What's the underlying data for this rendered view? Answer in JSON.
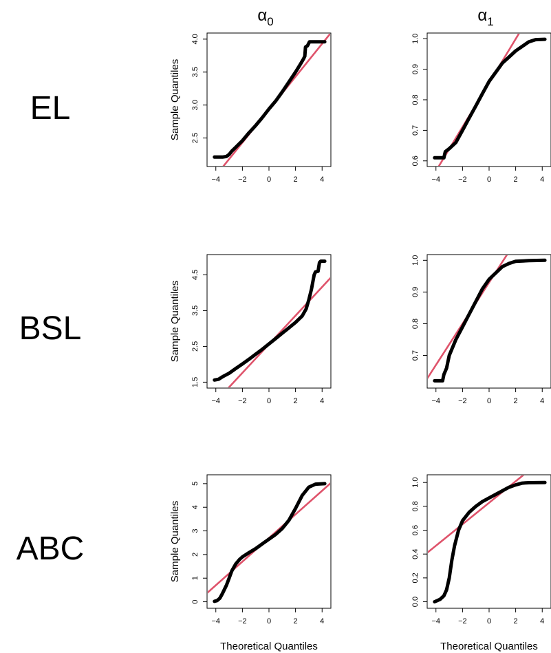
{
  "figure": {
    "columns": [
      {
        "symbol": "α",
        "subscript": "0"
      },
      {
        "symbol": "α",
        "subscript": "1"
      }
    ],
    "rows": [
      "EL",
      "BSL",
      "ABC"
    ]
  },
  "colors": {
    "points": "#000000",
    "line": "#DF536B",
    "axis": "#000000"
  },
  "chart_data": [
    {
      "type": "scatter",
      "row": "EL",
      "column": "α0",
      "ylabel": "Sample Quantiles",
      "xlabel": "",
      "xlim": [
        -4.35,
        4.35
      ],
      "ylim": [
        2.13,
        4.03
      ],
      "xticks": [
        -4,
        -2,
        0,
        2,
        4
      ],
      "xtick_labels": [
        "−4",
        "−2",
        "0",
        "2",
        "4"
      ],
      "yticks": [
        2.5,
        3.0,
        3.5,
        4.0
      ],
      "ytick_labels": [
        "2.5",
        "3.0",
        "3.5",
        "4.0"
      ],
      "qq_curve": [
        [
          -4.1,
          2.21
        ],
        [
          -3.5,
          2.21
        ],
        [
          -3.2,
          2.22
        ],
        [
          -3.0,
          2.25
        ],
        [
          -2.8,
          2.3
        ],
        [
          -2.5,
          2.36
        ],
        [
          -2.0,
          2.46
        ],
        [
          -1.5,
          2.58
        ],
        [
          -1.0,
          2.69
        ],
        [
          -0.5,
          2.81
        ],
        [
          0,
          2.94
        ],
        [
          0.5,
          3.06
        ],
        [
          1.0,
          3.2
        ],
        [
          1.5,
          3.35
        ],
        [
          2.0,
          3.5
        ],
        [
          2.4,
          3.63
        ],
        [
          2.6,
          3.7
        ],
        [
          2.7,
          3.74
        ],
        [
          2.75,
          3.88
        ],
        [
          2.9,
          3.9
        ],
        [
          3.05,
          3.96
        ],
        [
          4.2,
          3.96
        ]
      ],
      "reference_line": {
        "intercept": 2.93,
        "slope": 0.25
      }
    },
    {
      "type": "scatter",
      "row": "EL",
      "column": "α1",
      "ylabel": "",
      "xlabel": "",
      "xlim": [
        -4.35,
        4.35
      ],
      "ylim": [
        0.595,
        1.005
      ],
      "xticks": [
        -4,
        -2,
        0,
        2,
        4
      ],
      "xtick_labels": [
        "−4",
        "−2",
        "0",
        "2",
        "4"
      ],
      "yticks": [
        0.6,
        0.7,
        0.8,
        0.9,
        1.0
      ],
      "ytick_labels": [
        "0.6",
        "0.7",
        "0.8",
        "0.9",
        "1.0"
      ],
      "qq_curve": [
        [
          -4.1,
          0.61
        ],
        [
          -3.4,
          0.61
        ],
        [
          -3.3,
          0.63
        ],
        [
          -3.0,
          0.64
        ],
        [
          -2.5,
          0.66
        ],
        [
          -2.0,
          0.7
        ],
        [
          -1.5,
          0.74
        ],
        [
          -1.0,
          0.78
        ],
        [
          -0.5,
          0.82
        ],
        [
          0,
          0.86
        ],
        [
          0.5,
          0.89
        ],
        [
          1.0,
          0.92
        ],
        [
          1.5,
          0.94
        ],
        [
          2.0,
          0.96
        ],
        [
          2.5,
          0.975
        ],
        [
          3.0,
          0.99
        ],
        [
          3.5,
          0.997
        ],
        [
          4.2,
          0.998
        ]
      ],
      "reference_line": {
        "intercept": 0.855,
        "slope": 0.072
      }
    },
    {
      "type": "scatter",
      "row": "BSL",
      "column": "α0",
      "ylabel": "Sample Quantiles",
      "xlabel": "",
      "xlim": [
        -4.35,
        4.35
      ],
      "ylim": [
        1.45,
        4.95
      ],
      "xticks": [
        -4,
        -2,
        0,
        2,
        4
      ],
      "xtick_labels": [
        "−4",
        "−2",
        "0",
        "2",
        "4"
      ],
      "yticks": [
        1.5,
        2.5,
        3.5,
        4.5
      ],
      "ytick_labels": [
        "1.5",
        "2.5",
        "3.5",
        "4.5"
      ],
      "qq_curve": [
        [
          -4.1,
          1.56
        ],
        [
          -3.8,
          1.58
        ],
        [
          -3.5,
          1.65
        ],
        [
          -3.0,
          1.75
        ],
        [
          -2.5,
          1.88
        ],
        [
          -2.0,
          2.01
        ],
        [
          -1.5,
          2.14
        ],
        [
          -1.0,
          2.28
        ],
        [
          -0.5,
          2.42
        ],
        [
          0,
          2.57
        ],
        [
          0.5,
          2.72
        ],
        [
          1.0,
          2.87
        ],
        [
          1.5,
          3.02
        ],
        [
          2.0,
          3.17
        ],
        [
          2.5,
          3.35
        ],
        [
          2.8,
          3.55
        ],
        [
          3.0,
          3.8
        ],
        [
          3.2,
          4.1
        ],
        [
          3.4,
          4.5
        ],
        [
          3.5,
          4.58
        ],
        [
          3.7,
          4.6
        ],
        [
          3.8,
          4.84
        ],
        [
          3.9,
          4.88
        ],
        [
          4.2,
          4.88
        ]
      ],
      "reference_line": {
        "intercept": 2.56,
        "slope": 0.4
      }
    },
    {
      "type": "scatter",
      "row": "BSL",
      "column": "α1",
      "ylabel": "",
      "xlabel": "",
      "xlim": [
        -4.35,
        4.35
      ],
      "ylim": [
        0.61,
        1.005
      ],
      "xticks": [
        -4,
        -2,
        0,
        2,
        4
      ],
      "xtick_labels": [
        "−4",
        "−2",
        "0",
        "2",
        "4"
      ],
      "yticks": [
        0.7,
        0.8,
        0.9,
        1.0
      ],
      "ytick_labels": [
        "0.7",
        "0.8",
        "0.9",
        "1.0"
      ],
      "qq_curve": [
        [
          -4.1,
          0.62
        ],
        [
          -3.5,
          0.62
        ],
        [
          -3.4,
          0.64
        ],
        [
          -3.2,
          0.66
        ],
        [
          -3.0,
          0.7
        ],
        [
          -2.5,
          0.75
        ],
        [
          -2.0,
          0.79
        ],
        [
          -1.5,
          0.83
        ],
        [
          -1.0,
          0.87
        ],
        [
          -0.5,
          0.91
        ],
        [
          0,
          0.94
        ],
        [
          0.5,
          0.96
        ],
        [
          1.0,
          0.98
        ],
        [
          1.5,
          0.99
        ],
        [
          2.0,
          0.997
        ],
        [
          3.0,
          0.999
        ],
        [
          4.2,
          1.0
        ]
      ],
      "reference_line": {
        "intercept": 0.93,
        "slope": 0.065
      }
    },
    {
      "type": "scatter",
      "row": "ABC",
      "column": "α0",
      "ylabel": "Sample Quantiles",
      "xlabel": "Theoretical Quantiles",
      "xlim": [
        -4.35,
        4.35
      ],
      "ylim": [
        -0.1,
        5.2
      ],
      "xticks": [
        -4,
        -2,
        0,
        2,
        4
      ],
      "xtick_labels": [
        "−4",
        "−2",
        "0",
        "2",
        "4"
      ],
      "yticks": [
        0,
        1,
        2,
        3,
        4,
        5
      ],
      "ytick_labels": [
        "0",
        "1",
        "2",
        "3",
        "4",
        "5"
      ],
      "qq_curve": [
        [
          -4.1,
          0.02
        ],
        [
          -3.9,
          0.05
        ],
        [
          -3.7,
          0.15
        ],
        [
          -3.5,
          0.35
        ],
        [
          -3.2,
          0.7
        ],
        [
          -3.0,
          1.0
        ],
        [
          -2.8,
          1.3
        ],
        [
          -2.5,
          1.6
        ],
        [
          -2.2,
          1.8
        ],
        [
          -2.0,
          1.9
        ],
        [
          -1.5,
          2.08
        ],
        [
          -1.0,
          2.25
        ],
        [
          -0.5,
          2.45
        ],
        [
          0,
          2.65
        ],
        [
          0.5,
          2.85
        ],
        [
          1.0,
          3.1
        ],
        [
          1.5,
          3.45
        ],
        [
          2.0,
          3.95
        ],
        [
          2.5,
          4.5
        ],
        [
          3.0,
          4.85
        ],
        [
          3.5,
          4.98
        ],
        [
          4.2,
          5.0
        ]
      ],
      "reference_line": {
        "intercept": 2.7,
        "slope": 0.5
      }
    },
    {
      "type": "scatter",
      "row": "ABC",
      "column": "α1",
      "ylabel": "",
      "xlabel": "Theoretical Quantiles",
      "xlim": [
        -4.35,
        4.35
      ],
      "ylim": [
        -0.02,
        1.03
      ],
      "xticks": [
        -4,
        -2,
        0,
        2,
        4
      ],
      "xtick_labels": [
        "−4",
        "−2",
        "0",
        "2",
        "4"
      ],
      "yticks": [
        0.0,
        0.2,
        0.4,
        0.6,
        0.8,
        1.0
      ],
      "ytick_labels": [
        "0.0",
        "0.2",
        "0.4",
        "0.6",
        "0.8",
        "1.0"
      ],
      "qq_curve": [
        [
          -4.1,
          0.0
        ],
        [
          -3.7,
          0.02
        ],
        [
          -3.4,
          0.05
        ],
        [
          -3.2,
          0.1
        ],
        [
          -3.0,
          0.2
        ],
        [
          -2.8,
          0.35
        ],
        [
          -2.6,
          0.47
        ],
        [
          -2.3,
          0.6
        ],
        [
          -2.0,
          0.68
        ],
        [
          -1.5,
          0.75
        ],
        [
          -1.0,
          0.8
        ],
        [
          -0.5,
          0.84
        ],
        [
          0,
          0.87
        ],
        [
          0.5,
          0.9
        ],
        [
          1.0,
          0.93
        ],
        [
          1.5,
          0.96
        ],
        [
          2.0,
          0.98
        ],
        [
          2.5,
          0.995
        ],
        [
          3.0,
          0.998
        ],
        [
          4.2,
          1.0
        ]
      ],
      "reference_line": {
        "intercept": 0.83,
        "slope": 0.09
      }
    }
  ]
}
